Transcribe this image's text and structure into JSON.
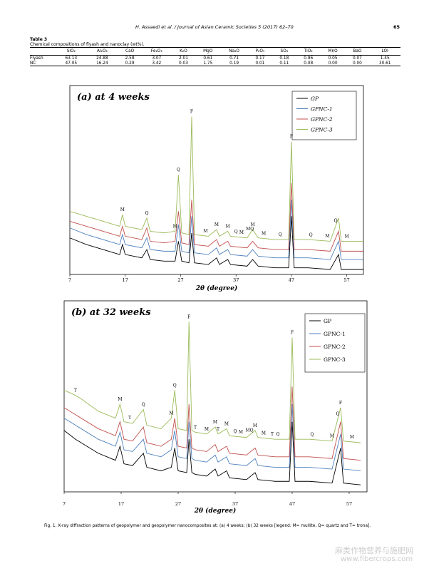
{
  "header": {
    "running_title": "H. Assaedi et al. / Journal of Asian Ceramic Societies 5 (2017) 62–70",
    "page": "65"
  },
  "table": {
    "label": "Table 3",
    "caption": "Chemical compositions of flyash and nanoclay (wt%).",
    "columns": [
      "SiO₂",
      "Al₂O₃",
      "CaO",
      "Fe₂O₃",
      "K₂O",
      "MgO",
      "Na₂O",
      "P₂O₅",
      "SO₃",
      "TiO₂",
      "MnO",
      "BaO",
      "LOI"
    ],
    "rows": [
      [
        "Flyash",
        "63.13",
        "24.88",
        "2.58",
        "3.07",
        "2.01",
        "0.61",
        "0.71",
        "0.17",
        "0.18",
        "0.96",
        "0.05",
        "0.07",
        "1.45"
      ],
      [
        "NC",
        "47.05",
        "16.24",
        "0.29",
        "3.42",
        "0.03",
        "1.75",
        "0.19",
        "0.01",
        "0.11",
        "0.08",
        "0.00",
        "0.00",
        "30.61"
      ]
    ]
  },
  "chart_data": [
    {
      "type": "line",
      "title": "(a) at 4 weeks",
      "x_label": "2θ  (degree)",
      "xlim": [
        7,
        60
      ],
      "xticks": [
        7,
        17,
        27,
        37,
        47,
        57
      ],
      "ylim": [
        0,
        100
      ],
      "x": [
        7,
        10,
        13,
        16,
        16.5,
        17,
        20,
        20.9,
        21.5,
        24,
        26,
        26.6,
        27.2,
        28.5,
        29,
        29.5,
        32,
        33.5,
        34,
        35.5,
        36,
        39,
        40,
        41,
        44,
        46.5,
        47,
        47.5,
        50,
        54,
        55.5,
        56,
        60
      ],
      "series": [
        {
          "name": "GP",
          "color": "#000000",
          "values": [
            22,
            18,
            15,
            12,
            18,
            12,
            10,
            15,
            9,
            8,
            8,
            20,
            8,
            7,
            25,
            7,
            6,
            10,
            6,
            9,
            6,
            5,
            9,
            5,
            4,
            4,
            35,
            4,
            4,
            3,
            12,
            3,
            3
          ]
        },
        {
          "name": "GPNC-1",
          "color": "#4f81bd",
          "values": [
            28,
            24,
            21,
            18,
            24,
            18,
            16,
            22,
            15,
            14,
            14,
            30,
            14,
            13,
            35,
            13,
            12,
            16,
            12,
            15,
            12,
            11,
            15,
            11,
            10,
            10,
            45,
            10,
            10,
            9,
            20,
            9,
            9
          ]
        },
        {
          "name": "GPNC-2",
          "color": "#c0504d",
          "values": [
            32,
            29,
            26,
            23,
            29,
            23,
            21,
            28,
            20,
            19,
            20,
            38,
            19,
            18,
            45,
            18,
            17,
            21,
            17,
            20,
            17,
            16,
            20,
            16,
            15,
            15,
            55,
            15,
            15,
            14,
            26,
            14,
            14
          ]
        },
        {
          "name": "GPNC-3",
          "color": "#9bbb59",
          "values": [
            38,
            35,
            32,
            29,
            36,
            29,
            27,
            34,
            26,
            25,
            26,
            60,
            25,
            24,
            95,
            24,
            23,
            27,
            23,
            26,
            23,
            22,
            27,
            22,
            21,
            21,
            80,
            21,
            21,
            20,
            34,
            20,
            20
          ]
        }
      ],
      "annotations": [
        {
          "text": "M",
          "x": 16.5
        },
        {
          "text": "Q",
          "x": 20.9
        },
        {
          "text": "M",
          "x": 26
        },
        {
          "text": "Q",
          "x": 26.6
        },
        {
          "text": "F",
          "x": 29
        },
        {
          "text": "M",
          "x": 31.5
        },
        {
          "text": "M",
          "x": 33.5
        },
        {
          "text": "M",
          "x": 35.5
        },
        {
          "text": "Q",
          "x": 37
        },
        {
          "text": "M",
          "x": 38
        },
        {
          "text": "MQ",
          "x": 39.5
        },
        {
          "text": "M",
          "x": 40
        },
        {
          "text": "M",
          "x": 42
        },
        {
          "text": "Q",
          "x": 45
        },
        {
          "text": "F",
          "x": 47
        },
        {
          "text": "Q",
          "x": 50.5
        },
        {
          "text": "M",
          "x": 53.5
        },
        {
          "text": "Q",
          "x": 55
        },
        {
          "text": "M",
          "x": 57
        }
      ]
    },
    {
      "type": "line",
      "title": "(b) at 32 weeks",
      "x_label": "2θ  (degree)",
      "xlim": [
        7,
        60
      ],
      "xticks": [
        7,
        17,
        27,
        37,
        47,
        57
      ],
      "ylim": [
        0,
        100
      ],
      "x": [
        7,
        9,
        10,
        13,
        16,
        16.8,
        17.5,
        19,
        20.9,
        21.5,
        24,
        25.8,
        26.4,
        27,
        28.5,
        28.9,
        29.4,
        30,
        32,
        33.5,
        34,
        35.5,
        36,
        39,
        40.5,
        41,
        44,
        46.5,
        47,
        47.5,
        50,
        54,
        55.5,
        56,
        59
      ],
      "series": [
        {
          "name": "GP",
          "color": "#000000",
          "values": [
            35,
            30,
            28,
            22,
            18,
            26,
            16,
            15,
            22,
            14,
            12,
            14,
            25,
            12,
            11,
            30,
            11,
            10,
            9,
            13,
            9,
            12,
            8,
            7,
            11,
            7,
            6,
            6,
            40,
            6,
            6,
            5,
            25,
            5,
            4
          ]
        },
        {
          "name": "GPNC-1",
          "color": "#4f81bd",
          "values": [
            42,
            38,
            36,
            30,
            26,
            34,
            24,
            23,
            30,
            22,
            20,
            24,
            35,
            20,
            19,
            40,
            19,
            18,
            17,
            21,
            17,
            20,
            16,
            15,
            19,
            15,
            14,
            14,
            50,
            14,
            14,
            13,
            33,
            13,
            12
          ]
        },
        {
          "name": "GPNC-2",
          "color": "#c0504d",
          "values": [
            48,
            44,
            42,
            36,
            32,
            40,
            30,
            29,
            37,
            28,
            26,
            30,
            42,
            26,
            25,
            50,
            25,
            24,
            23,
            27,
            23,
            26,
            22,
            21,
            25,
            21,
            20,
            20,
            60,
            20,
            20,
            19,
            40,
            19,
            18
          ]
        },
        {
          "name": "GPNC-3",
          "color": "#9bbb59",
          "values": [
            58,
            55,
            53,
            46,
            42,
            50,
            40,
            39,
            47,
            38,
            36,
            42,
            58,
            36,
            35,
            97,
            35,
            34,
            33,
            37,
            33,
            36,
            32,
            31,
            35,
            31,
            30,
            30,
            88,
            30,
            30,
            29,
            48,
            29,
            28
          ]
        }
      ],
      "annotations": [
        {
          "text": "T",
          "x": 9
        },
        {
          "text": "M",
          "x": 16.8
        },
        {
          "text": "T",
          "x": 18.5
        },
        {
          "text": "Q",
          "x": 20.9
        },
        {
          "text": "M",
          "x": 25.8
        },
        {
          "text": "Q",
          "x": 26.4
        },
        {
          "text": "F",
          "x": 28.9
        },
        {
          "text": "T",
          "x": 30
        },
        {
          "text": "M",
          "x": 32
        },
        {
          "text": "M",
          "x": 33.5
        },
        {
          "text": "T",
          "x": 34
        },
        {
          "text": "M",
          "x": 35.5
        },
        {
          "text": "Q",
          "x": 37
        },
        {
          "text": "M",
          "x": 38
        },
        {
          "text": "MQ",
          "x": 39.5
        },
        {
          "text": "M",
          "x": 40.5
        },
        {
          "text": "M",
          "x": 42
        },
        {
          "text": "T",
          "x": 43.5
        },
        {
          "text": "Q",
          "x": 44.5
        },
        {
          "text": "F",
          "x": 47
        },
        {
          "text": "Q",
          "x": 50.5
        },
        {
          "text": "M",
          "x": 54
        },
        {
          "text": "Q",
          "x": 55
        },
        {
          "text": "F",
          "x": 55.5
        },
        {
          "text": "M",
          "x": 57.5
        }
      ]
    }
  ],
  "figure_caption": "Fig. 1.  X-ray diffraction patterns of geopolymer and geopolymer nanocomposites at: (a) 4 weeks; (b) 32 weeks [legend: M= mullite, Q= quartz and T= trona].",
  "watermark": {
    "line1": "麻类作物营养与施肥网",
    "line2": "www.fibercrops.com"
  }
}
